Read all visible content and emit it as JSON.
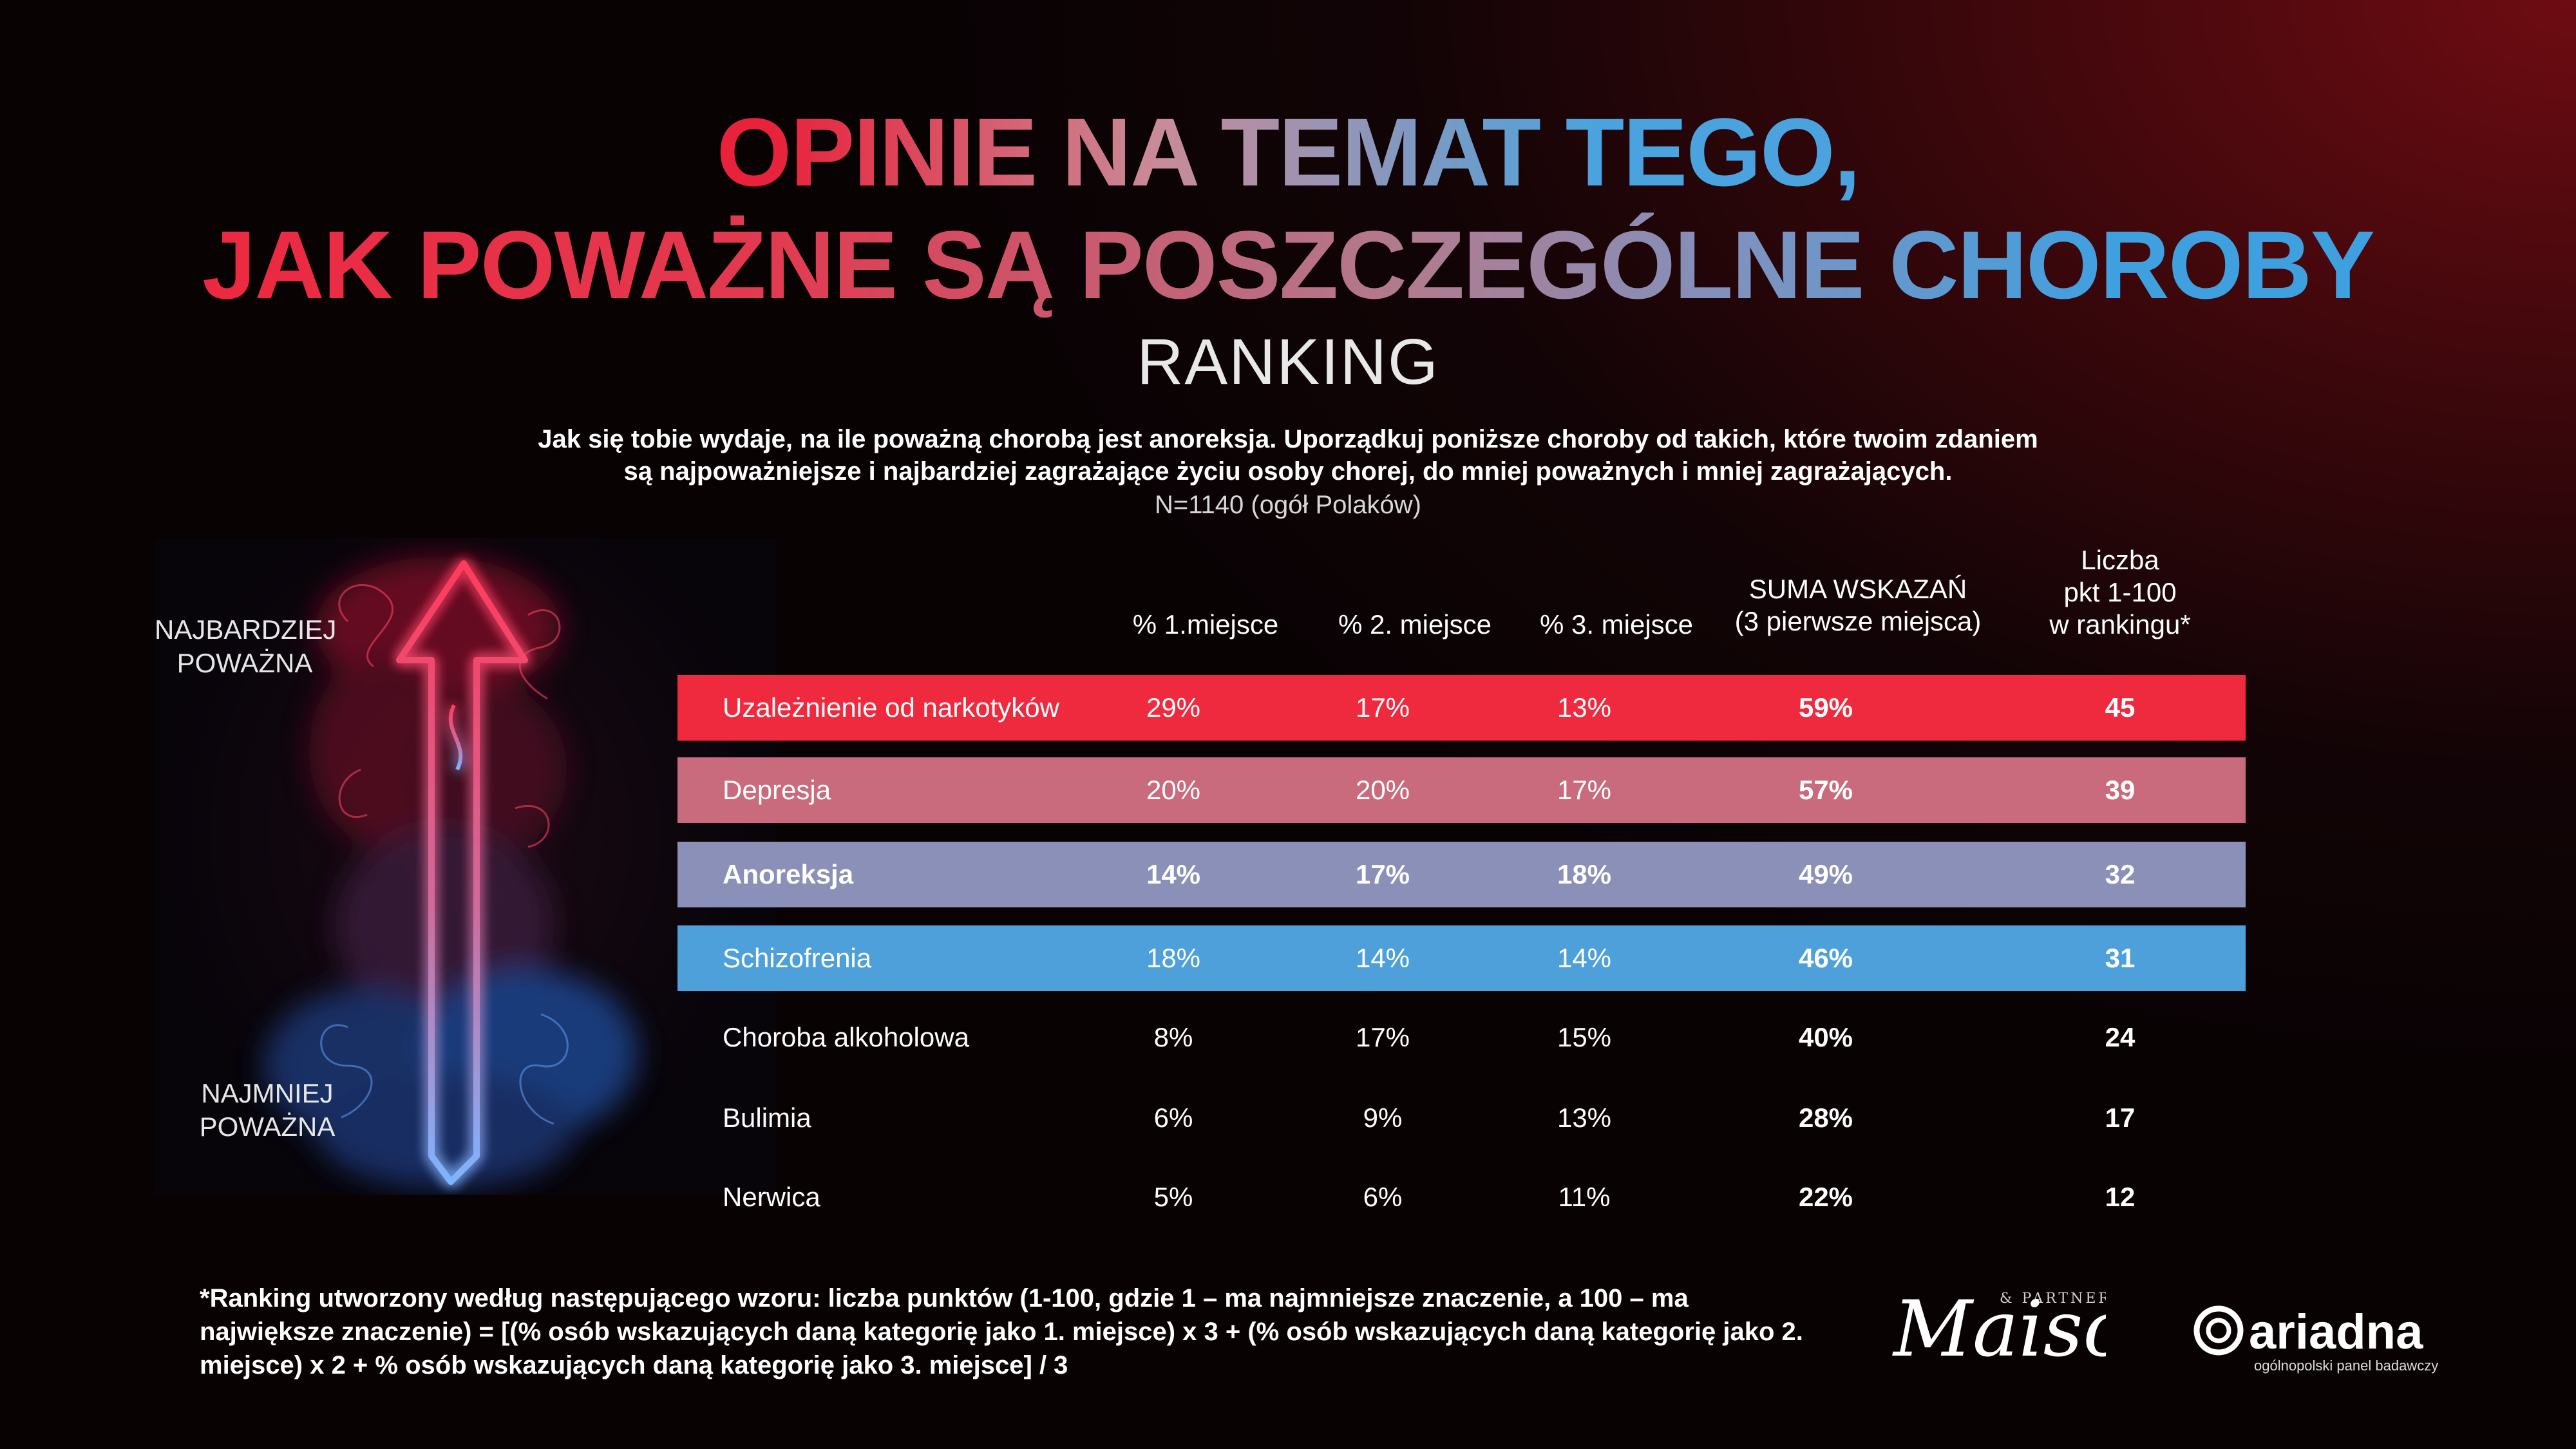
{
  "title": {
    "line1": "OPINIE NA TEMAT TEGO,",
    "line2": "JAK POWAŻNE SĄ POSZCZEGÓLNE CHOROBY",
    "subtitle": "RANKING"
  },
  "question": {
    "line1": "Jak się tobie wydaje, na ile poważną chorobą jest anoreksja. Uporządkuj poniższe choroby od takich, które twoim zdaniem",
    "line2": "są najpoważniejsze i najbardziej zagrażające życiu osoby chorej, do mniej poważnych i mniej zagrażających.",
    "sample": "N=1140 (ogół Polaków)"
  },
  "image": {
    "label_top": "NAJBARDZIEJ POWAŻNA",
    "label_bottom": "NAJMNIEJ POWAŻNA"
  },
  "chart_data": {
    "type": "table",
    "columns": [
      "% 1.miejsce",
      "% 2. miejsce",
      "% 3. miejsce",
      "SUMA WSKAZAŃ (3 pierwsze miejsca)",
      "Liczba pkt 1-100 w rankingu*"
    ],
    "header_lines": {
      "c4a": "SUMA WSKAZAŃ",
      "c4b": "(3 pierwsze miejsca)",
      "c5a": "Liczba",
      "c5b": "pkt 1-100",
      "c5c": "w rankingu*"
    },
    "rows": [
      {
        "name": "Uzależnienie od narkotyków",
        "c1": "29%",
        "c2": "17%",
        "c3": "13%",
        "sum": "59%",
        "pts": "45",
        "color": "#ef2a3e"
      },
      {
        "name": "Depresja",
        "c1": "20%",
        "c2": "20%",
        "c3": "17%",
        "sum": "57%",
        "pts": "39",
        "color": "#c96b7d"
      },
      {
        "name": "Anoreksja",
        "c1": "14%",
        "c2": "17%",
        "c3": "18%",
        "sum": "49%",
        "pts": "32",
        "color": "#8b90b8",
        "highlight": true
      },
      {
        "name": "Schizofrenia",
        "c1": "18%",
        "c2": "14%",
        "c3": "14%",
        "sum": "46%",
        "pts": "31",
        "color": "#4ea0da"
      },
      {
        "name": "Choroba alkoholowa",
        "c1": "8%",
        "c2": "17%",
        "c3": "15%",
        "sum": "40%",
        "pts": "24",
        "color": ""
      },
      {
        "name": "Bulimia",
        "c1": "6%",
        "c2": "9%",
        "c3": "13%",
        "sum": "28%",
        "pts": "17",
        "color": ""
      },
      {
        "name": "Nerwica",
        "c1": "5%",
        "c2": "6%",
        "c3": "11%",
        "sum": "22%",
        "pts": "12",
        "color": ""
      }
    ]
  },
  "footnote": "*Ranking utworzony według następującego wzoru: liczba punktów (1-100, gdzie 1 – ma najmniejsze znaczenie, a 100 – ma największe znaczenie) = [(% osób wskazujących daną kategorię jako 1. miejsce) x 3 + (% osób wskazujących daną kategorię jako 2. miejsce) x 2 + % osób wskazujących daną kategorię jako 3. miejsce] / 3",
  "logos": {
    "maison": "Maison",
    "maison_sub": "& PARTNERS",
    "ariadna": "ariadna",
    "ariadna_sub": "ogólnopolski panel badawczy"
  }
}
